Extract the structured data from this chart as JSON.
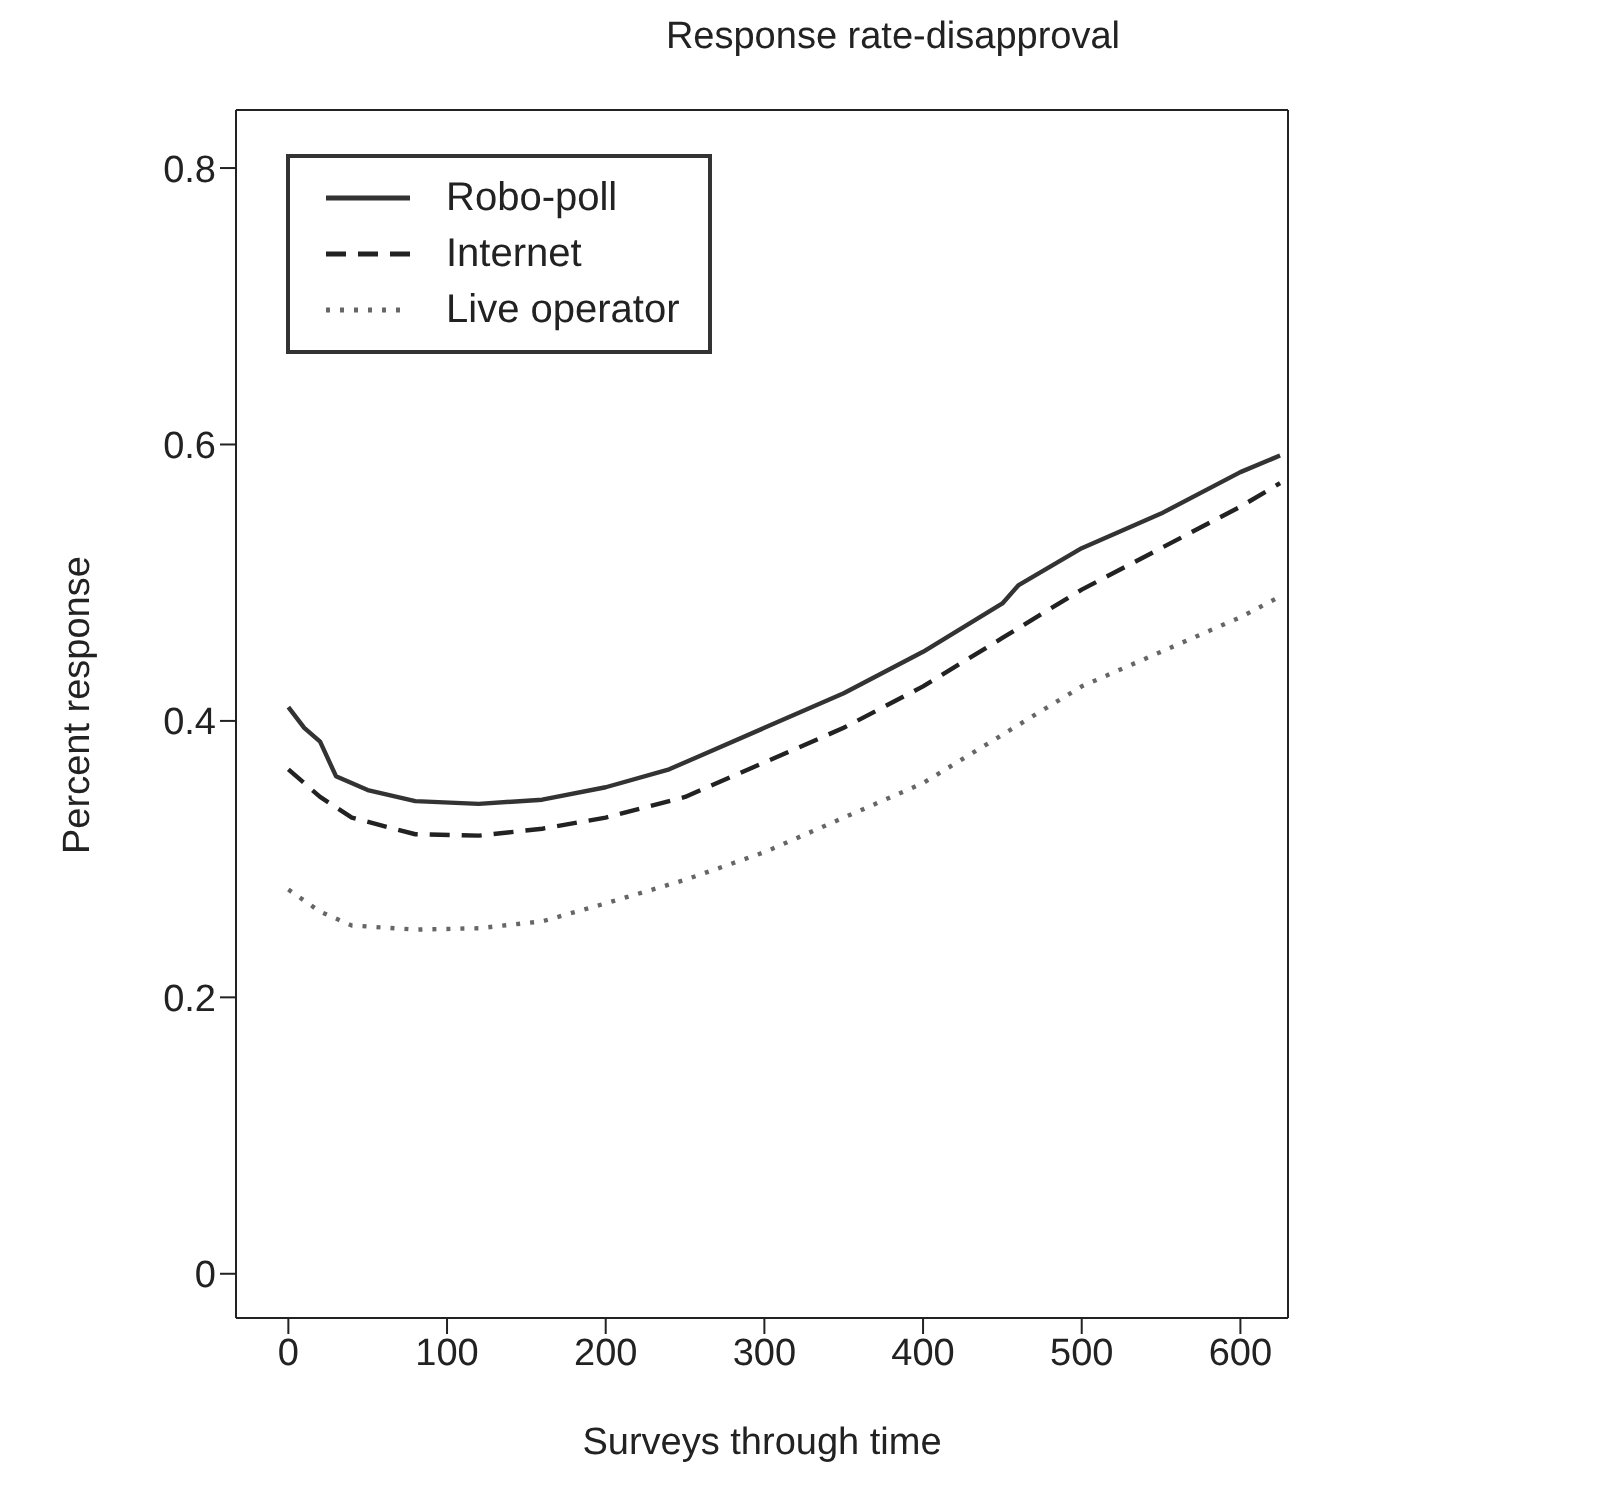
{
  "chart_data": {
    "type": "line",
    "title": "Response rate-disapproval",
    "xlabel": "Surveys through time",
    "ylabel": "Percent response",
    "xlim": [
      -33,
      630
    ],
    "ylim": [
      -0.032,
      0.842
    ],
    "xticks": [
      0,
      100,
      200,
      300,
      400,
      500,
      600
    ],
    "yticks": [
      0,
      0.2,
      0.4,
      0.6,
      0.8
    ],
    "legend": "top left",
    "marker": "none",
    "series": [
      {
        "name": "Robo-poll",
        "color": "#333333",
        "line_style": "solid",
        "x": [
          0,
          10,
          20,
          30,
          50,
          80,
          120,
          160,
          200,
          240,
          260,
          300,
          350,
          400,
          450,
          460,
          500,
          550,
          600,
          625
        ],
        "values": [
          0.41,
          0.395,
          0.385,
          0.36,
          0.35,
          0.342,
          0.34,
          0.343,
          0.352,
          0.365,
          0.375,
          0.395,
          0.42,
          0.45,
          0.485,
          0.498,
          0.525,
          0.55,
          0.58,
          0.592
        ]
      },
      {
        "name": "Internet",
        "color": "#222222",
        "line_style": "dashed",
        "x": [
          0,
          20,
          40,
          80,
          120,
          160,
          200,
          250,
          300,
          350,
          400,
          450,
          500,
          550,
          600,
          625
        ],
        "values": [
          0.365,
          0.345,
          0.33,
          0.318,
          0.317,
          0.322,
          0.33,
          0.345,
          0.37,
          0.395,
          0.425,
          0.46,
          0.495,
          0.525,
          0.555,
          0.572
        ]
      },
      {
        "name": "Live operator",
        "color": "#666666",
        "line_style": "dotted",
        "x": [
          0,
          20,
          40,
          80,
          120,
          160,
          200,
          250,
          300,
          350,
          400,
          450,
          500,
          550,
          600,
          625
        ],
        "values": [
          0.278,
          0.262,
          0.252,
          0.249,
          0.25,
          0.255,
          0.268,
          0.285,
          0.305,
          0.33,
          0.355,
          0.39,
          0.425,
          0.45,
          0.475,
          0.49
        ]
      }
    ]
  }
}
